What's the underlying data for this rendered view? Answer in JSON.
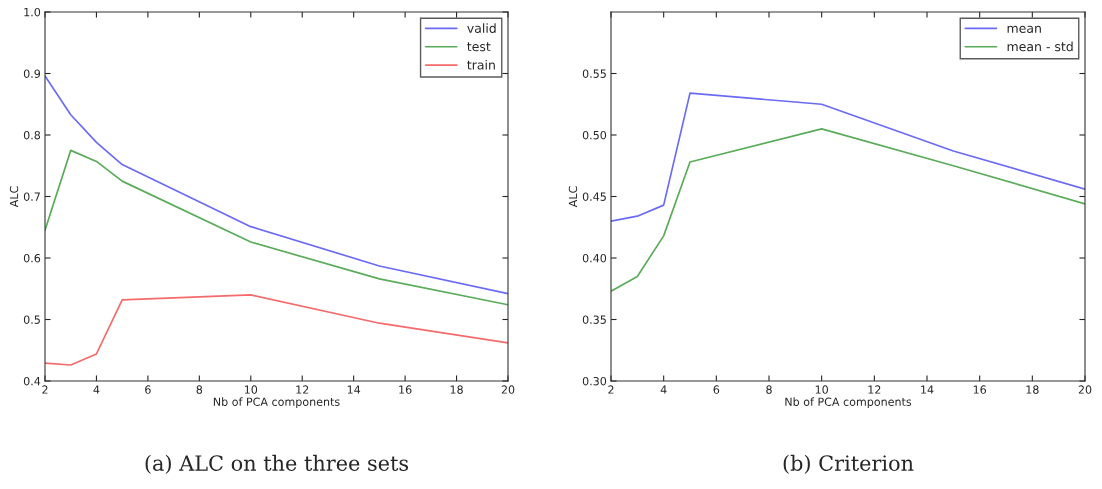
{
  "chart_data": [
    {
      "type": "line",
      "title": "(a) ALC on the three sets",
      "xlabel": "Nb of PCA components",
      "ylabel": "ALC",
      "x": [
        2,
        3,
        4,
        5,
        10,
        15,
        20
      ],
      "xlim": [
        2,
        20
      ],
      "xticks": [
        2,
        4,
        6,
        8,
        10,
        12,
        14,
        16,
        18,
        20
      ],
      "ylim": [
        0.4,
        1.0
      ],
      "yticks": [
        0.4,
        0.5,
        0.6,
        0.7,
        0.8,
        0.9,
        {
          "value": 1.0,
          "label": "1.0"
        }
      ],
      "grid": false,
      "legend": "top right",
      "series": [
        {
          "name": "valid",
          "color": "#6a6af5",
          "values": [
            0.896,
            0.833,
            0.788,
            0.752,
            0.651,
            0.587,
            0.542
          ]
        },
        {
          "name": "test",
          "color": "#5aab5a",
          "values": [
            0.645,
            0.775,
            0.757,
            0.725,
            0.626,
            0.566,
            0.524
          ]
        },
        {
          "name": "train",
          "color": "#f56a6a",
          "values": [
            0.429,
            0.426,
            0.444,
            0.532,
            0.54,
            0.494,
            0.462
          ]
        }
      ]
    },
    {
      "type": "line",
      "title": "(b) Criterion",
      "xlabel": "Nb of PCA components",
      "ylabel": "ALC",
      "x": [
        2,
        3,
        4,
        5,
        10,
        15,
        20
      ],
      "xlim": [
        2,
        20
      ],
      "xticks": [
        2,
        4,
        6,
        8,
        10,
        12,
        14,
        16,
        18,
        20
      ],
      "ylim": [
        0.3,
        0.6
      ],
      "yticks": [
        {
          "value": 0.3,
          "label": "0.30"
        },
        0.35,
        {
          "value": 0.4,
          "label": "0.40"
        },
        0.45,
        {
          "value": 0.5,
          "label": "0.50"
        },
        0.55
      ],
      "grid": false,
      "legend": "top right",
      "series": [
        {
          "name": "mean",
          "color": "#6a6af5",
          "values": [
            0.43,
            0.434,
            0.443,
            0.534,
            0.525,
            0.487,
            0.456
          ]
        },
        {
          "name": "mean - std",
          "color": "#5aab5a",
          "values": [
            0.373,
            0.385,
            0.418,
            0.478,
            0.505,
            0.475,
            0.444
          ]
        }
      ]
    }
  ]
}
